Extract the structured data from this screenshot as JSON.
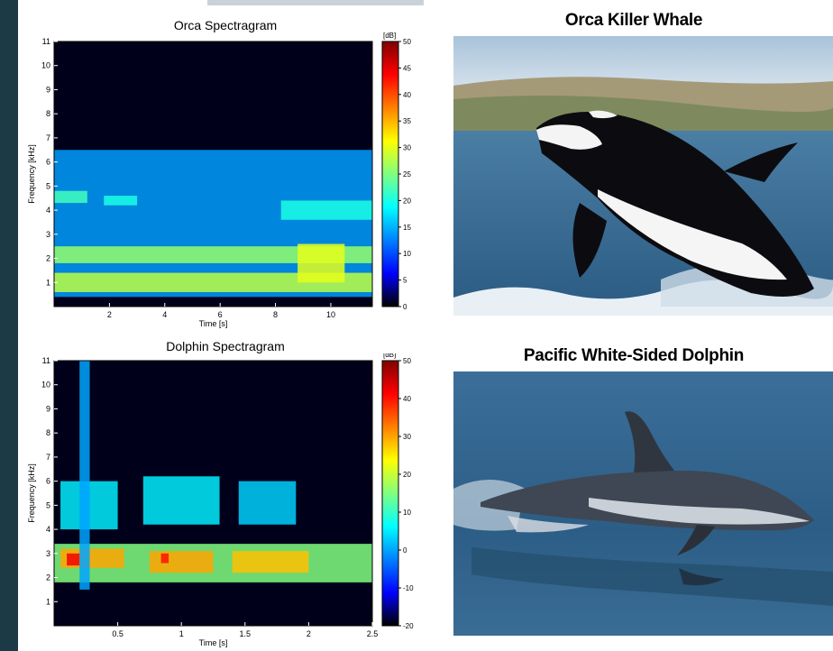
{
  "photos": {
    "orca_title": "Orca Killer Whale",
    "dolphin_title": "Pacific White-Sided Dolphin"
  },
  "colors": {
    "background": "#1b3a45",
    "plot_bg": "#00001a",
    "ocean": "#2f5f86"
  },
  "chart_data": [
    {
      "type": "heatmap",
      "title": "Orca Spectragram",
      "xlabel": "Time [s]",
      "ylabel": "Frequency [kHz]",
      "xlim": [
        0,
        11.5
      ],
      "ylim": [
        0,
        11
      ],
      "xticks": [
        "2",
        "4",
        "6",
        "8",
        "10"
      ],
      "xtick_values": [
        2,
        4,
        6,
        8,
        10
      ],
      "yticks": [
        "1",
        "2",
        "3",
        "4",
        "5",
        "6",
        "7",
        "8",
        "9",
        "10",
        "11"
      ],
      "ytick_values": [
        1,
        2,
        3,
        4,
        5,
        6,
        7,
        8,
        9,
        10,
        11
      ],
      "colorbar": {
        "unit": "[dB]",
        "range": [
          0,
          50
        ],
        "ticks": [
          "50",
          "45",
          "40",
          "35",
          "30",
          "25",
          "20",
          "15",
          "10",
          "5",
          "0"
        ],
        "tick_values": [
          50,
          45,
          40,
          35,
          30,
          25,
          20,
          15,
          10,
          5,
          0
        ]
      },
      "bands": [
        {
          "t0": 0,
          "t1": 11.5,
          "f0": 0.4,
          "f1": 6.5,
          "level": 14
        },
        {
          "t0": 0,
          "t1": 11.5,
          "f0": 1.8,
          "f1": 2.5,
          "level": 26
        },
        {
          "t0": 0,
          "t1": 11.5,
          "f0": 0.6,
          "f1": 1.4,
          "level": 28
        },
        {
          "t0": 0,
          "t1": 1.2,
          "f0": 4.3,
          "f1": 4.8,
          "level": 22
        },
        {
          "t0": 1.8,
          "t1": 3.0,
          "f0": 4.2,
          "f1": 4.6,
          "level": 20
        },
        {
          "t0": 8.2,
          "t1": 11.5,
          "f0": 3.6,
          "f1": 4.4,
          "level": 20
        },
        {
          "t0": 8.8,
          "t1": 10.5,
          "f0": 1.0,
          "f1": 2.6,
          "level": 30
        }
      ]
    },
    {
      "type": "heatmap",
      "title": "Dolphin Spectragram",
      "xlabel": "Time [s]",
      "ylabel": "Frequency [kHz]",
      "xlim": [
        0,
        2.5
      ],
      "ylim": [
        0,
        11
      ],
      "xticks": [
        "0.5",
        "1",
        "1.5",
        "2",
        "2.5"
      ],
      "xtick_values": [
        0.5,
        1,
        1.5,
        2,
        2.5
      ],
      "yticks": [
        "1",
        "2",
        "3",
        "4",
        "5",
        "6",
        "7",
        "8",
        "9",
        "10",
        "11"
      ],
      "ytick_values": [
        1,
        2,
        3,
        4,
        5,
        6,
        7,
        8,
        9,
        10,
        11
      ],
      "colorbar": {
        "unit": "[dB]",
        "range": [
          -20,
          50
        ],
        "ticks": [
          "50",
          "40",
          "30",
          "20",
          "10",
          "0",
          "-10",
          "-20"
        ],
        "tick_values": [
          50,
          40,
          30,
          20,
          10,
          0,
          -10,
          -20
        ]
      },
      "bands": [
        {
          "t0": 0,
          "t1": 2.5,
          "f0": 1.8,
          "f1": 3.4,
          "level": 15
        },
        {
          "t0": 0.05,
          "t1": 0.55,
          "f0": 2.4,
          "f1": 3.2,
          "level": 30
        },
        {
          "t0": 0.75,
          "t1": 1.25,
          "f0": 2.2,
          "f1": 3.1,
          "level": 30
        },
        {
          "t0": 1.4,
          "t1": 2.0,
          "f0": 2.2,
          "f1": 3.1,
          "level": 28
        },
        {
          "t0": 0.1,
          "t1": 0.2,
          "f0": 2.5,
          "f1": 3.0,
          "level": 42
        },
        {
          "t0": 0.84,
          "t1": 0.9,
          "f0": 2.6,
          "f1": 3.0,
          "level": 40
        },
        {
          "t0": 0.05,
          "t1": 0.5,
          "f0": 4.0,
          "f1": 6.0,
          "level": 5
        },
        {
          "t0": 0.7,
          "t1": 1.3,
          "f0": 4.2,
          "f1": 6.2,
          "level": 5
        },
        {
          "t0": 1.45,
          "t1": 1.9,
          "f0": 4.2,
          "f1": 6.0,
          "level": 3
        },
        {
          "t0": 0.2,
          "t1": 0.28,
          "f0": 1.5,
          "f1": 11,
          "level": 0
        }
      ]
    }
  ]
}
